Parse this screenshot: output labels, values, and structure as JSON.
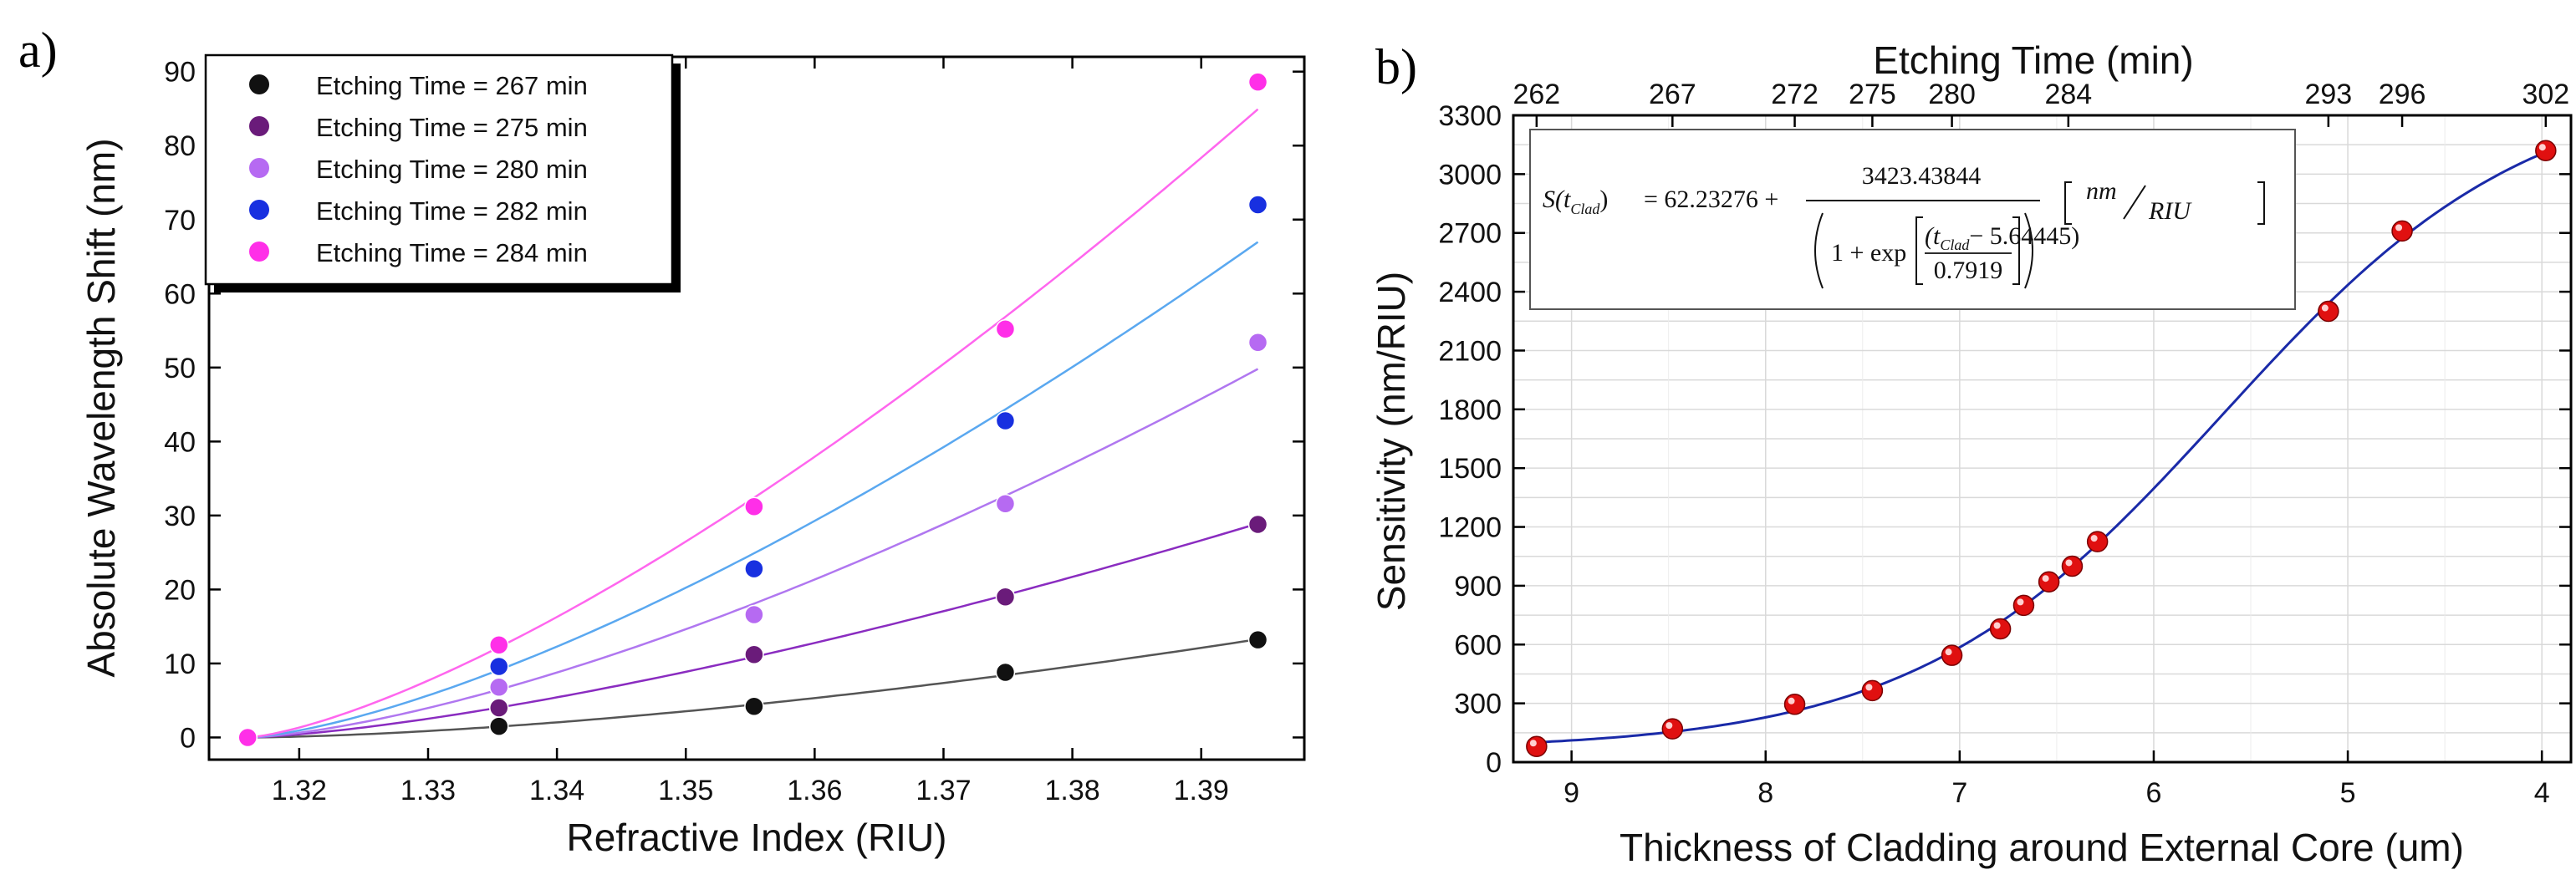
{
  "colors": {
    "panel_a_points": [
      "#111111",
      "#6a1b7a",
      "#b66af2",
      "#1830e0",
      "#ff2fe8"
    ],
    "panel_a_lines": [
      "#555555",
      "#8a2cc0",
      "#b077f0",
      "#5aa8f0",
      "#ff66ee"
    ],
    "panel_b_curve": "#1a2aa8",
    "panel_b_points": "#e01010"
  },
  "chart_data": [
    {
      "panel": "a)",
      "type": "scatter",
      "xlabel": "Refractive Index (RIU)",
      "ylabel": "Absolute Wavelength Shift (nm)",
      "xlim": [
        1.313,
        1.398
      ],
      "ylim": [
        -3,
        92
      ],
      "xticks": [
        "1.32",
        "1.33",
        "1.34",
        "1.35",
        "1.36",
        "1.37",
        "1.38",
        "1.39"
      ],
      "yticks": [
        "0",
        "10",
        "20",
        "30",
        "40",
        "50",
        "60",
        "70",
        "80",
        "90"
      ],
      "legend_position": "top-left",
      "x": [
        1.316,
        1.3355,
        1.3553,
        1.3748,
        1.3944
      ],
      "series": [
        {
          "name": "Etching Time = 267 min",
          "values": [
            0,
            1.5,
            4.2,
            8.8,
            13.2
          ]
        },
        {
          "name": "Etching Time = 275 min",
          "values": [
            0,
            4.0,
            11.2,
            19.0,
            28.8
          ]
        },
        {
          "name": "Etching Time = 280 min",
          "values": [
            0,
            6.8,
            16.6,
            31.6,
            53.4
          ]
        },
        {
          "name": "Etching Time = 282 min",
          "values": [
            0,
            9.6,
            22.8,
            42.8,
            72.0
          ]
        },
        {
          "name": "Etching Time = 284 min",
          "values": [
            0,
            12.5,
            31.2,
            55.2,
            88.6
          ]
        }
      ]
    },
    {
      "panel": "b)",
      "type": "scatter",
      "xlabel": "Thickness of Cladding around External Core (um)",
      "ylabel": "Sensitivity (nm/RIU)",
      "top_xlabel": "Etching Time (min)",
      "xlim": [
        9.3,
        3.85
      ],
      "ylim": [
        0,
        3300
      ],
      "xticks": [
        "9",
        "8",
        "7",
        "6",
        "5",
        "4"
      ],
      "yticks": [
        "0",
        "300",
        "600",
        "900",
        "1200",
        "1500",
        "1800",
        "2100",
        "2400",
        "2700",
        "3000",
        "3300"
      ],
      "top_ticks": [
        {
          "label": "262",
          "x": 9.18
        },
        {
          "label": "267",
          "x": 8.48
        },
        {
          "label": "272",
          "x": 7.85
        },
        {
          "label": "275",
          "x": 7.45
        },
        {
          "label": "280",
          "x": 7.04
        },
        {
          "label": "284",
          "x": 6.44
        },
        {
          "label": "293",
          "x": 5.1
        },
        {
          "label": "296",
          "x": 4.72
        },
        {
          "label": "302",
          "x": 3.98
        }
      ],
      "points": {
        "x": [
          9.18,
          8.48,
          7.85,
          7.45,
          7.04,
          6.79,
          6.67,
          6.54,
          6.42,
          6.29,
          5.1,
          4.72,
          3.98
        ],
        "y": [
          80,
          170,
          295,
          365,
          545,
          680,
          800,
          920,
          1000,
          1125,
          2300,
          2710,
          3120
        ]
      },
      "fit": {
        "A": 62.23276,
        "B": 3423.43844,
        "x0": 5.64445,
        "w": 0.7919
      },
      "equation": {
        "lhs": "S(t",
        "lhs_sub": "Clad",
        "lhs_close": ")",
        "eq_offset": "= 62.23276 +",
        "numerator": "3423.43844",
        "den_prefix": "1 + exp",
        "den_inner_a": "(t",
        "den_inner_sub": "Clad",
        "den_inner_b": "− 5.64445)",
        "den_inner_den": "0.7919",
        "unit_num": "nm",
        "unit_den": "RIU"
      }
    }
  ]
}
